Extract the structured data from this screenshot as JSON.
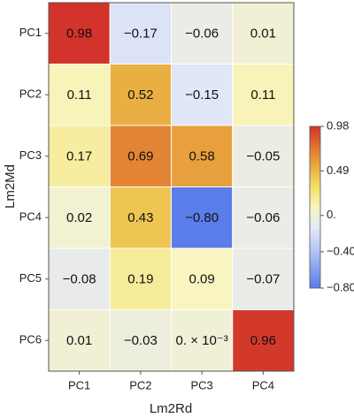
{
  "chart_data": {
    "type": "heatmap",
    "x_label": "Lm2Rd",
    "y_label": "Lm2Md",
    "x_categories": [
      "PC1",
      "PC2",
      "PC3",
      "PC4"
    ],
    "y_categories": [
      "PC1",
      "PC2",
      "PC3",
      "PC4",
      "PC5",
      "PC6"
    ],
    "values": [
      [
        0.98,
        -0.17,
        -0.06,
        0.01
      ],
      [
        0.11,
        0.52,
        -0.15,
        0.11
      ],
      [
        0.17,
        0.69,
        0.58,
        -0.05
      ],
      [
        0.02,
        0.43,
        -0.8,
        -0.06
      ],
      [
        -0.08,
        0.19,
        0.09,
        -0.07
      ],
      [
        0.01,
        -0.03,
        0,
        0.96
      ]
    ],
    "value_labels": [
      [
        "0.98",
        "−0.17",
        "−0.06",
        "0.01"
      ],
      [
        "0.11",
        "0.52",
        "−0.15",
        "0.11"
      ],
      [
        "0.17",
        "0.69",
        "0.58",
        "−0.05"
      ],
      [
        "0.02",
        "0.43",
        "−0.80",
        "−0.06"
      ],
      [
        "−0.08",
        "0.19",
        "0.09",
        "−0.07"
      ],
      [
        "0.01",
        "−0.03",
        "0. × 10⁻³",
        "0.96"
      ]
    ],
    "clim": [
      -0.8,
      0.98
    ],
    "cticks": [
      0.98,
      0.49,
      {
        "value": 0,
        "label": "0."
      },
      {
        "value": -0.4,
        "label": "−0.40"
      },
      {
        "value": -0.8,
        "label": "−0.80"
      }
    ],
    "colors": [
      "#5b7de9",
      "#8aa3ee",
      "#bccaf4",
      "#e4e8f8",
      "#f8f5c0",
      "#f3df68",
      "#e9ab40",
      "#e0742f",
      "#d2332a"
    ]
  }
}
